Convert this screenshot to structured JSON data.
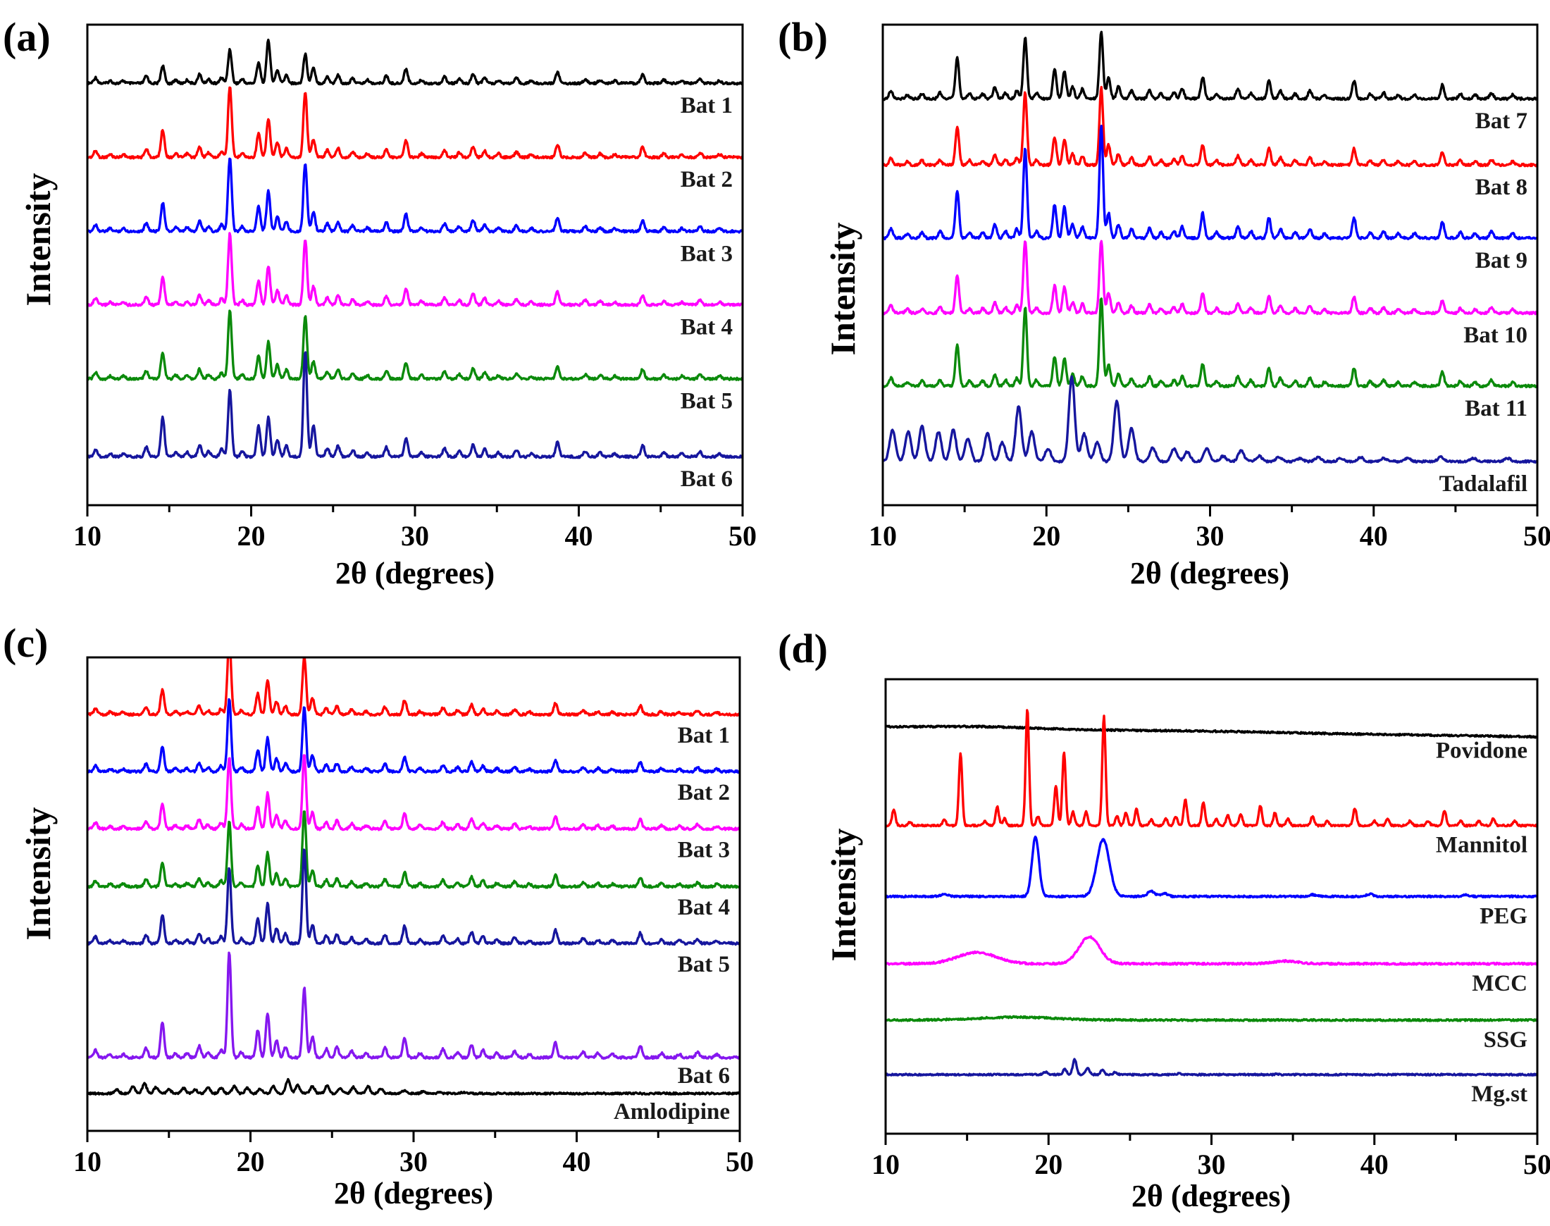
{
  "figure": {
    "description": "Four-panel powder XRD figure: overlaid diffractograms of tablet batches, pure drugs and excipients",
    "background": "#ffffff",
    "text_color": "#000000"
  },
  "chart_data": [
    {
      "panel": "a",
      "tag": "(a)",
      "type": "line",
      "xlabel": "2θ (degrees)",
      "ylabel": "Intensity",
      "x_range": [
        10,
        50
      ],
      "x_major_ticks": [
        10,
        20,
        30,
        40,
        50
      ],
      "x_minor_ticks": [
        15,
        25,
        35,
        45
      ],
      "grid": false,
      "legend": "labels-inline-right",
      "y_axis": "arbitrary stacked intensity, no ticks",
      "series": [
        {
          "label": "Bat 1",
          "color": "#000000",
          "pattern": "formulation",
          "amp": 115,
          "overrides": {
            "18.7": 0.42,
            "21.05": 0.54,
            "23.3": 0.36,
            "14.6": 0.22
          }
        },
        {
          "label": "Bat 2",
          "color": "#ff0000",
          "pattern": "formulation",
          "amp": 130
        },
        {
          "label": "Bat 3",
          "color": "#0000ff",
          "pattern": "formulation",
          "amp": 135
        },
        {
          "label": "Bat 4",
          "color": "#ff00ff",
          "pattern": "formulation",
          "amp": 130
        },
        {
          "label": "Bat 5",
          "color": "#0b8a0b",
          "pattern": "formulation",
          "amp": 125
        },
        {
          "label": "Bat 6",
          "color": "#16169e",
          "pattern": "formulation",
          "amp": 150,
          "overrides": {
            "23.3": 1.0,
            "23.8": 0.3,
            "18.7": 0.63,
            "14.6": 0.37,
            "20.45": 0.3,
            "21.05": 0.38
          }
        }
      ]
    },
    {
      "panel": "b",
      "tag": "(b)",
      "type": "line",
      "xlabel": "2θ (degrees)",
      "ylabel": "Intensity",
      "x_range": [
        10,
        50
      ],
      "x_major_ticks": [
        10,
        20,
        30,
        40,
        50
      ],
      "x_minor_ticks": [
        15,
        25,
        35,
        45
      ],
      "grid": false,
      "legend": "labels-inline-right",
      "y_axis": "arbitrary stacked intensity, no ticks",
      "series": [
        {
          "label": "Bat 7",
          "color": "#000000",
          "pattern": "formulation_b",
          "amp": 140,
          "overrides": {
            "23.35": 0.68,
            "18.7": 0.62,
            "14.55": 0.42
          }
        },
        {
          "label": "Bat 8",
          "color": "#ff0000",
          "pattern": "formulation_b",
          "amp": 130,
          "overrides": {
            "23.35": 0.85
          }
        },
        {
          "label": "Bat 9",
          "color": "#0000ff",
          "pattern": "formulation_b",
          "amp": 160
        },
        {
          "label": "Bat 10",
          "color": "#ff00ff",
          "pattern": "formulation_b",
          "amp": 130,
          "overrides": {
            "23.35": 0.8
          }
        },
        {
          "label": "Bat 11",
          "color": "#0b8a0b",
          "pattern": "formulation_b",
          "amp": 140,
          "overrides": {
            "23.35": 0.9
          }
        },
        {
          "label": "Tadalafil",
          "color": "#16169e",
          "pattern": "tadalafil",
          "amp": 150,
          "noise": 1.4
        }
      ]
    },
    {
      "panel": "c",
      "tag": "(c)",
      "type": "line",
      "xlabel": "2θ (degrees)",
      "ylabel": "Intensity",
      "x_range": [
        10,
        50
      ],
      "x_major_ticks": [
        10,
        20,
        30,
        40,
        50
      ],
      "x_minor_ticks": [
        15,
        25,
        35,
        45
      ],
      "grid": false,
      "legend": "labels-inline-right",
      "y_axis": "arbitrary stacked intensity, no ticks",
      "series": [
        {
          "label": "Bat 1",
          "color": "#ff0000",
          "pattern": "formulation",
          "amp": 115,
          "overrides": {
            "18.7": 0.95,
            "23.3": 0.72
          }
        },
        {
          "label": "Bat 2",
          "color": "#0000ff",
          "pattern": "formulation",
          "amp": 115,
          "overrides": {
            "18.7": 0.9,
            "23.3": 0.8
          }
        },
        {
          "label": "Bat 3",
          "color": "#ff00ff",
          "pattern": "formulation",
          "amp": 120,
          "overrides": {
            "18.7": 0.85,
            "23.3": 0.88
          }
        },
        {
          "label": "Bat 4",
          "color": "#0b8a0b",
          "pattern": "formulation",
          "amp": 115,
          "overrides": {
            "18.7": 0.8,
            "23.3": 0.95
          }
        },
        {
          "label": "Bat 5",
          "color": "#16169e",
          "pattern": "formulation",
          "amp": 135,
          "overrides": {
            "18.7": 0.8,
            "23.3": 1.0
          }
        },
        {
          "label": "Bat 6",
          "color": "#8517ef",
          "pattern": "formulation",
          "amp": 150,
          "label_dy": 36,
          "overrides": {
            "18.7": 1.0,
            "23.3": 0.66,
            "14.6": 0.33
          }
        },
        {
          "label": "Amlodipine",
          "color": "#000000",
          "pattern": "amlodipine",
          "amp": 60,
          "noise": 1.3,
          "label_dy": 36
        }
      ]
    },
    {
      "panel": "d",
      "tag": "(d)",
      "type": "line",
      "xlabel": "2θ (degrees)",
      "ylabel": "Intensity",
      "x_range": [
        10,
        50
      ],
      "x_major_ticks": [
        10,
        20,
        30,
        40,
        50
      ],
      "x_minor_ticks": [
        15,
        25,
        35,
        45
      ],
      "grid": false,
      "legend": "labels-inline-right",
      "y_axis": "arbitrary stacked intensity, no ticks",
      "series": [
        {
          "label": "Povidone",
          "color": "#000000",
          "pattern": "povidone",
          "amp": 5,
          "noise": 1.2,
          "slope": 14,
          "label_dy": 44
        },
        {
          "label": "Mannitol",
          "color": "#ff0000",
          "pattern": "mannitol",
          "amp": 165,
          "noise": 1.2,
          "label_dy": 38
        },
        {
          "label": "PEG",
          "color": "#0000ff",
          "pattern": "peg",
          "amp": 85,
          "noise": 1.2,
          "label_dy": 38
        },
        {
          "label": "MCC",
          "color": "#ff00ff",
          "pattern": "mcc",
          "amp": 38,
          "noise": 1.3,
          "label_dy": 38
        },
        {
          "label": "SSG",
          "color": "#0b8a0b",
          "pattern": "ssg",
          "amp": 7,
          "noise": 1.2,
          "label_dy": 38
        },
        {
          "label": "Mg.st",
          "color": "#16169e",
          "pattern": "mgst",
          "amp": 22,
          "noise": 1.1,
          "label_dy": 38
        }
      ]
    }
  ],
  "xrd_patterns": {
    "units": "peaks = [two-theta degrees, relative height 0-1, optional FWHM degrees]",
    "formulation": {
      "w": 0.26,
      "peaks": [
        [
          10.5,
          0.07
        ],
        [
          11.4,
          0.03
        ],
        [
          12.2,
          0.03
        ],
        [
          13.6,
          0.09
        ],
        [
          14.6,
          0.3
        ],
        [
          15.4,
          0.04
        ],
        [
          16.1,
          0.04
        ],
        [
          16.85,
          0.11
        ],
        [
          17.4,
          0.05
        ],
        [
          18.2,
          0.07
        ],
        [
          18.7,
          0.78
        ],
        [
          19.45,
          0.05
        ],
        [
          20.45,
          0.26
        ],
        [
          21.05,
          0.42
        ],
        [
          21.6,
          0.16
        ],
        [
          22.15,
          0.1
        ],
        [
          23.3,
          0.72
        ],
        [
          23.8,
          0.2
        ],
        [
          24.65,
          0.08
        ],
        [
          25.3,
          0.1
        ],
        [
          26.2,
          0.06
        ],
        [
          27.1,
          0.04
        ],
        [
          28.25,
          0.09
        ],
        [
          29.45,
          0.18
        ],
        [
          30.4,
          0.04
        ],
        [
          31.8,
          0.08
        ],
        [
          32.7,
          0.05
        ],
        [
          33.55,
          0.12
        ],
        [
          34.25,
          0.07
        ],
        [
          35.1,
          0.04
        ],
        [
          36.2,
          0.06
        ],
        [
          37.1,
          0.03
        ],
        [
          38.7,
          0.14
        ],
        [
          40.4,
          0.05
        ],
        [
          41.3,
          0.04
        ],
        [
          42.2,
          0.03
        ],
        [
          43.9,
          0.11
        ],
        [
          45.2,
          0.04
        ],
        [
          46.3,
          0.03
        ],
        [
          47.4,
          0.05
        ],
        [
          48.6,
          0.03
        ]
      ]
    },
    "formulation_b": {
      "w": 0.26,
      "peaks": [
        [
          10.5,
          0.08
        ],
        [
          11.5,
          0.04
        ],
        [
          12.4,
          0.05
        ],
        [
          13.5,
          0.06
        ],
        [
          14.55,
          0.42
        ],
        [
          15.3,
          0.05
        ],
        [
          16.1,
          0.05
        ],
        [
          16.85,
          0.12
        ],
        [
          17.5,
          0.06
        ],
        [
          18.2,
          0.08
        ],
        [
          18.7,
          0.8
        ],
        [
          19.4,
          0.06
        ],
        [
          20.5,
          0.3
        ],
        [
          21.1,
          0.28
        ],
        [
          21.6,
          0.12
        ],
        [
          22.2,
          0.1
        ],
        [
          23.35,
          1.0
        ],
        [
          23.8,
          0.22
        ],
        [
          24.4,
          0.12
        ],
        [
          25.2,
          0.08
        ],
        [
          26.3,
          0.09
        ],
        [
          27.0,
          0.05
        ],
        [
          27.8,
          0.06
        ],
        [
          28.3,
          0.1
        ],
        [
          29.55,
          0.22
        ],
        [
          30.4,
          0.05
        ],
        [
          31.7,
          0.1
        ],
        [
          32.5,
          0.06
        ],
        [
          33.6,
          0.18
        ],
        [
          34.3,
          0.08
        ],
        [
          35.2,
          0.05
        ],
        [
          36.1,
          0.08
        ],
        [
          37.0,
          0.04
        ],
        [
          38.8,
          0.18
        ],
        [
          39.8,
          0.05
        ],
        [
          40.6,
          0.06
        ],
        [
          41.5,
          0.04
        ],
        [
          42.5,
          0.04
        ],
        [
          44.2,
          0.14
        ],
        [
          45.3,
          0.05
        ],
        [
          46.2,
          0.04
        ],
        [
          47.2,
          0.06
        ],
        [
          48.5,
          0.04
        ]
      ]
    },
    "tadalafil": {
      "w": 0.42,
      "peaks": [
        [
          10.6,
          0.3
        ],
        [
          11.55,
          0.28
        ],
        [
          12.4,
          0.33
        ],
        [
          13.4,
          0.28
        ],
        [
          14.3,
          0.3
        ],
        [
          15.2,
          0.22
        ],
        [
          16.4,
          0.27
        ],
        [
          17.3,
          0.18
        ],
        [
          18.3,
          0.52
        ],
        [
          19.1,
          0.28
        ],
        [
          20.1,
          0.12
        ],
        [
          21.55,
          0.8
        ],
        [
          22.3,
          0.26
        ],
        [
          23.1,
          0.18
        ],
        [
          24.3,
          0.58
        ],
        [
          25.2,
          0.32
        ],
        [
          26.5,
          0.13
        ],
        [
          27.8,
          0.12
        ],
        [
          28.6,
          0.09
        ],
        [
          29.8,
          0.12
        ],
        [
          30.8,
          0.05
        ],
        [
          31.9,
          0.1
        ],
        [
          33.0,
          0.05
        ],
        [
          34.2,
          0.04
        ],
        [
          35.5,
          0.03
        ],
        [
          36.6,
          0.04
        ],
        [
          38.0,
          0.03
        ],
        [
          39.2,
          0.04
        ],
        [
          40.6,
          0.03
        ],
        [
          42.1,
          0.03
        ],
        [
          44.1,
          0.04
        ],
        [
          46.1,
          0.03
        ],
        [
          48.2,
          0.03
        ]
      ]
    },
    "amlodipine": {
      "w": 0.3,
      "peaks": [
        [
          11.8,
          0.1
        ],
        [
          12.8,
          0.17
        ],
        [
          13.5,
          0.24
        ],
        [
          14.2,
          0.15
        ],
        [
          15.0,
          0.1
        ],
        [
          15.9,
          0.13
        ],
        [
          16.6,
          0.1
        ],
        [
          17.4,
          0.15
        ],
        [
          18.2,
          0.13
        ],
        [
          19.0,
          0.17
        ],
        [
          19.8,
          0.13
        ],
        [
          20.6,
          0.11
        ],
        [
          21.4,
          0.17
        ],
        [
          22.3,
          0.32
        ],
        [
          22.9,
          0.2
        ],
        [
          23.8,
          0.17
        ],
        [
          24.7,
          0.19
        ],
        [
          25.5,
          0.13
        ],
        [
          26.3,
          0.15
        ],
        [
          27.2,
          0.17
        ],
        [
          28.0,
          0.11
        ],
        [
          29.4,
          0.07
        ],
        [
          30.6,
          0.05
        ],
        [
          31.6,
          0.04
        ],
        [
          33.0,
          0.03
        ]
      ]
    },
    "mannitol": {
      "w": 0.24,
      "peaks": [
        [
          10.5,
          0.14
        ],
        [
          11.5,
          0.03
        ],
        [
          13.6,
          0.05
        ],
        [
          14.6,
          0.62
        ],
        [
          16.1,
          0.04
        ],
        [
          16.85,
          0.16
        ],
        [
          17.3,
          0.06
        ],
        [
          18.7,
          1.0
        ],
        [
          19.35,
          0.08
        ],
        [
          20.45,
          0.34
        ],
        [
          20.95,
          0.63
        ],
        [
          21.5,
          0.12
        ],
        [
          22.3,
          0.12
        ],
        [
          23.4,
          0.94
        ],
        [
          24.2,
          0.08
        ],
        [
          24.75,
          0.11
        ],
        [
          25.4,
          0.14
        ],
        [
          26.3,
          0.05
        ],
        [
          27.2,
          0.06
        ],
        [
          27.8,
          0.08
        ],
        [
          28.4,
          0.22
        ],
        [
          29.5,
          0.2
        ],
        [
          30.3,
          0.06
        ],
        [
          31.0,
          0.09
        ],
        [
          31.8,
          0.1
        ],
        [
          33.0,
          0.17
        ],
        [
          33.9,
          0.11
        ],
        [
          34.7,
          0.06
        ],
        [
          36.2,
          0.08
        ],
        [
          37.1,
          0.04
        ],
        [
          38.8,
          0.15
        ],
        [
          40.0,
          0.04
        ],
        [
          40.8,
          0.06
        ],
        [
          42.2,
          0.04
        ],
        [
          43.3,
          0.04
        ],
        [
          44.3,
          0.13
        ],
        [
          45.3,
          0.04
        ],
        [
          46.4,
          0.04
        ],
        [
          47.3,
          0.06
        ],
        [
          48.6,
          0.04
        ]
      ]
    },
    "peg": {
      "w": 0.5,
      "peaks": [
        [
          13.6,
          0.04
        ],
        [
          19.2,
          1.0
        ],
        [
          23.35,
          0.95,
          0.9
        ],
        [
          26.3,
          0.09
        ],
        [
          27.1,
          0.05
        ],
        [
          36.2,
          0.03
        ],
        [
          39.7,
          0.04
        ],
        [
          45.6,
          0.03
        ]
      ]
    },
    "mcc": {
      "w": 1.5,
      "peaks": [
        [
          15.6,
          0.42,
          2.8
        ],
        [
          22.5,
          1.0,
          1.5
        ],
        [
          34.6,
          0.1,
          1.8
        ]
      ]
    },
    "ssg": {
      "w": 5.5,
      "peaks": [
        [
          18.0,
          0.6,
          5.5
        ]
      ]
    },
    "mgst": {
      "w": 0.26,
      "peaks": [
        [
          19.8,
          0.18
        ],
        [
          21.0,
          0.35
        ],
        [
          21.6,
          1.0
        ],
        [
          22.4,
          0.45
        ],
        [
          23.3,
          0.3
        ],
        [
          24.1,
          0.15
        ],
        [
          28.0,
          0.06
        ],
        [
          34.0,
          0.04
        ]
      ]
    },
    "povidone": {
      "w": 7.0,
      "peaks": [
        [
          16.0,
          0.5,
          7.0
        ],
        [
          30.0,
          0.2,
          9.0
        ]
      ]
    }
  }
}
